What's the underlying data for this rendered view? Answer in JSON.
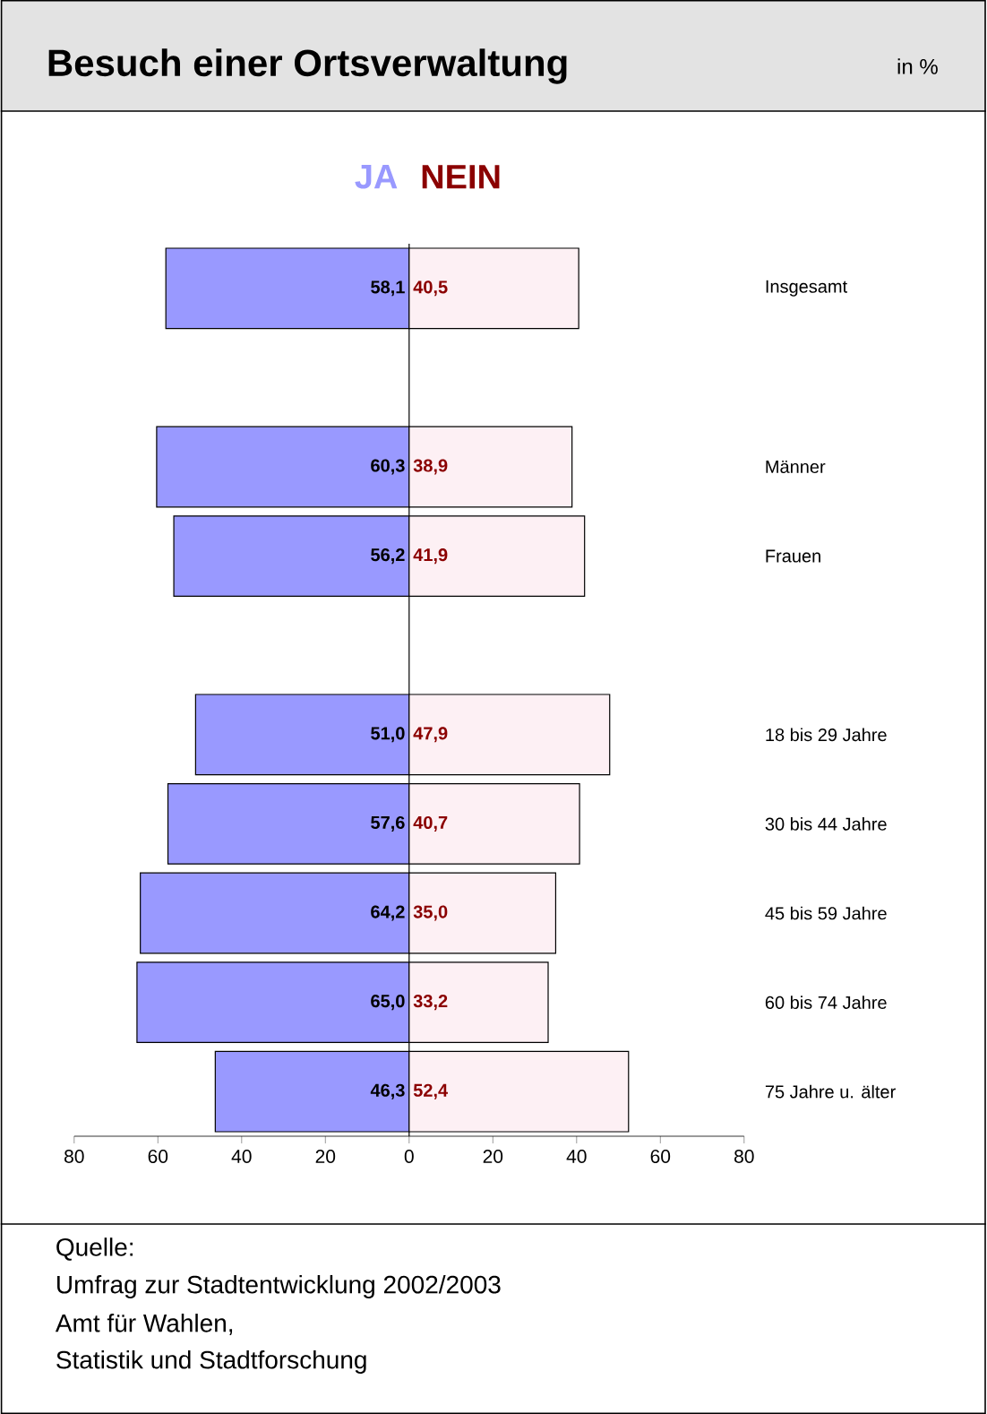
{
  "chart_data": {
    "type": "bar",
    "orientation": "horizontal",
    "title": "Besuch einer Ortsverwaltung",
    "subtitle": "in %",
    "categories": [
      "Insgesamt",
      null,
      "Männer",
      "Frauen",
      null,
      "18 bis 29 Jahre",
      "30 bis 44 Jahre",
      "45 bis 59 Jahre",
      "60 bis 74 Jahre",
      "75 Jahre u. älter"
    ],
    "series": [
      {
        "name": "JA",
        "color": "#9999ff",
        "base": [
          -58.1,
          null,
          -60.3,
          -56.2,
          null,
          -51.0,
          -57.6,
          -64.2,
          -65.0,
          -46.3
        ],
        "values": [
          58.1,
          null,
          60.3,
          56.2,
          null,
          51.0,
          57.6,
          64.2,
          65.0,
          46.3
        ],
        "value_labels": [
          "58,1",
          null,
          "60,3",
          "56,2",
          null,
          "51,0",
          "57,6",
          "64,2",
          "65,0",
          "46,3"
        ]
      },
      {
        "name": "NEIN",
        "color": "#fdf0f4",
        "values": [
          40.5,
          null,
          38.9,
          41.9,
          null,
          47.9,
          40.7,
          35.0,
          33.2,
          52.4
        ],
        "value_labels": [
          "40,5",
          null,
          "38,9",
          "41,9",
          null,
          "47,9",
          "40,7",
          "35,0",
          "33,2",
          "52,4"
        ]
      }
    ],
    "xlim": [
      -80,
      80
    ],
    "xticks": [
      {
        "value": -80,
        "label": "80"
      },
      {
        "value": -60,
        "label": "60"
      },
      {
        "value": -40,
        "label": "40"
      },
      {
        "value": -20,
        "label": "20"
      },
      0,
      20,
      40,
      60,
      80
    ],
    "annotations": [
      "Quelle:",
      "Umfrag zur Stadtentwicklung 2002/2003",
      "Amt für Wahlen,",
      "Statistik und Stadtforschung"
    ]
  }
}
